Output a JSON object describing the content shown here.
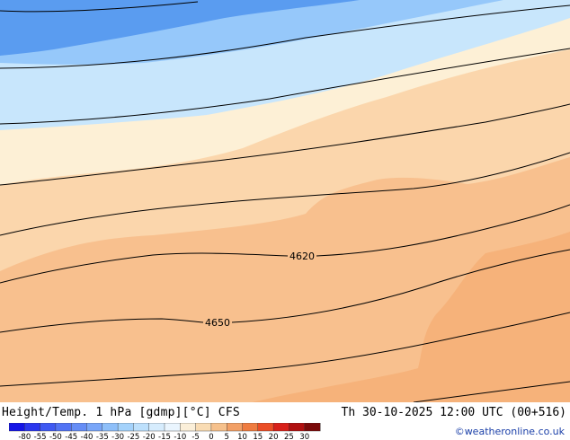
{
  "map": {
    "title": "Height/Temp. 1 hPa [gdmp][°C] CFS",
    "valid_time": "Th 30-10-2025 12:00 UTC (00+516)",
    "contour_labels": [
      "4620",
      "4650"
    ],
    "shading_colors": {
      "blue_mid": "#5a9cf0",
      "blue_light": "#96c8fa",
      "blue_pale": "#c8e6fc",
      "cream": "#fdf0d6",
      "peach_light": "#fbd6ac",
      "peach": "#f8c08e",
      "orange_light": "#f5ad73"
    }
  },
  "color_scale": {
    "labels": [
      "-80",
      "-55",
      "-50",
      "-45",
      "-40",
      "-35",
      "-30",
      "-25",
      "-20",
      "-15",
      "-10",
      "-5",
      "0",
      "5",
      "10",
      "15",
      "20",
      "25",
      "30"
    ],
    "colors": [
      "#1515e6",
      "#2b37ee",
      "#3f59f2",
      "#5273f4",
      "#658df6",
      "#79a6f8",
      "#8ebff9",
      "#a4d2fb",
      "#bde0fc",
      "#d6ecfd",
      "#eaf5fe",
      "#fbefd9",
      "#f9dcb4",
      "#f6c18c",
      "#f2a066",
      "#ef7c40",
      "#eb4e26",
      "#d8201a",
      "#b01010",
      "#7a0a0a"
    ]
  },
  "credit": "©weatheronline.co.uk"
}
